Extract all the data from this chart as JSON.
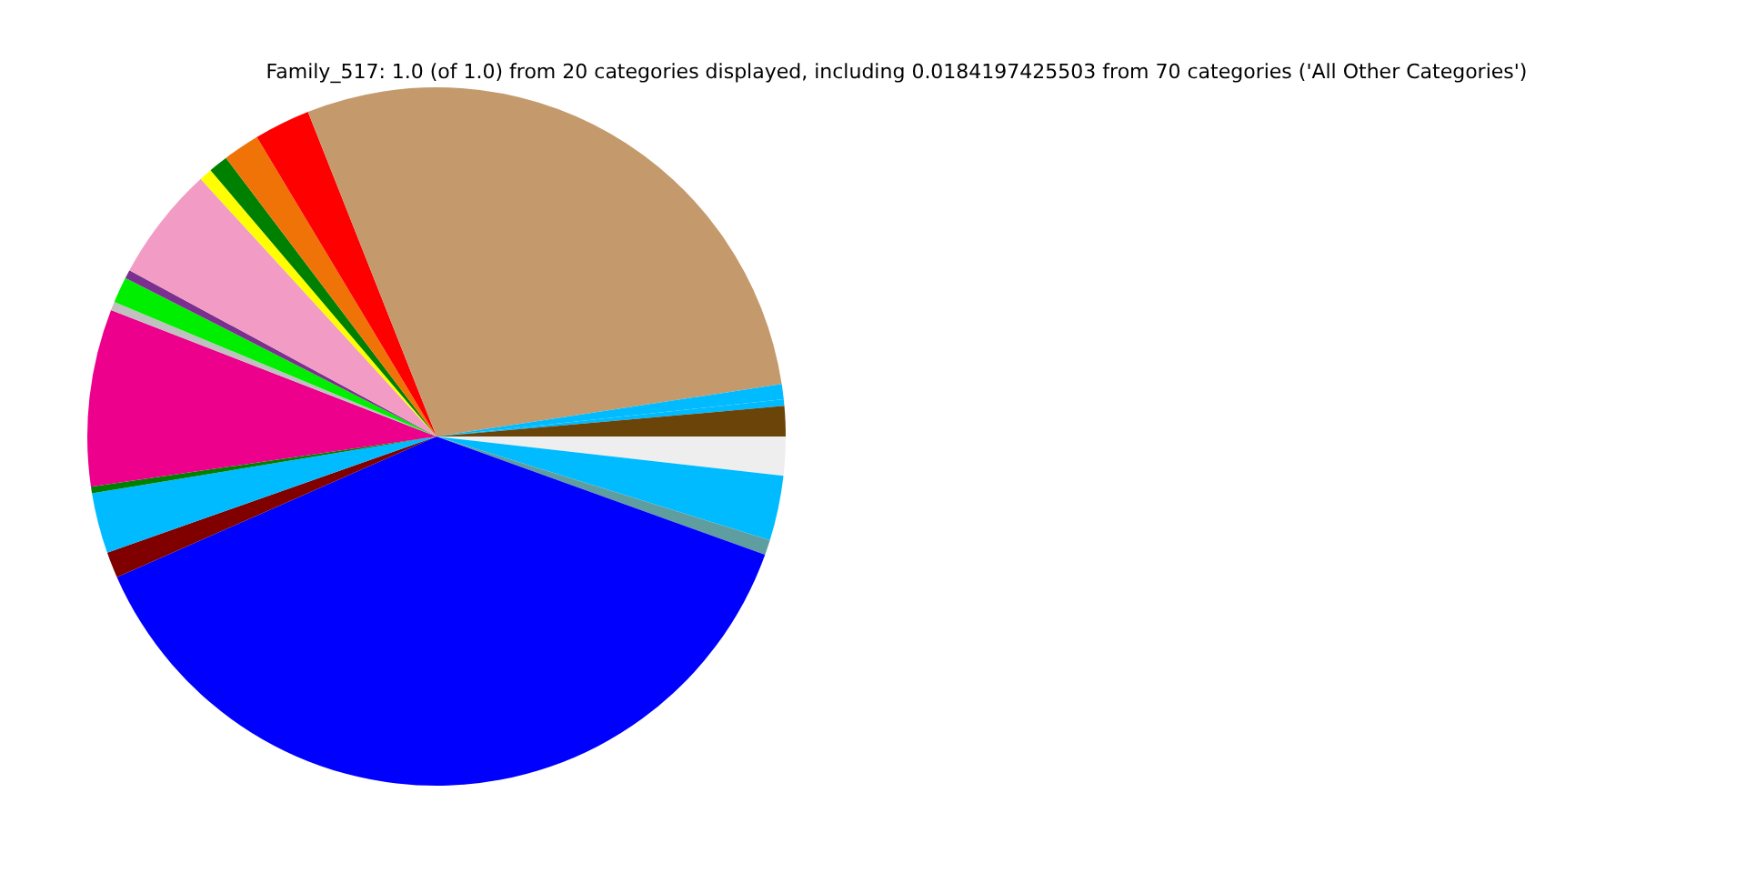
{
  "chart_data": {
    "type": "pie",
    "title": "Family_517: 1.0 (of 1.0) from 20 categories displayed, including 0.0184197425503 from 70 categories ('All Other Categories')",
    "categories": [
      null,
      null,
      null,
      null,
      null,
      null,
      null,
      null,
      null,
      null,
      null,
      null,
      null,
      null,
      null,
      null,
      null,
      null,
      null,
      null
    ],
    "values": [
      1.8,
      3.0,
      0.7,
      37.9,
      1.2,
      2.8,
      0.3,
      8.2,
      0.4,
      1.2,
      0.4,
      5.3,
      0.6,
      0.9,
      1.7,
      2.6,
      28.6,
      0.7,
      0.3,
      1.4
    ],
    "colors": [
      "#eeeeee",
      "#00bbff",
      "#5f9ea0",
      "#0000ff",
      "#800000",
      "#00bbff",
      "#008000",
      "#ec008c",
      "#c0c0c0",
      "#00ee00",
      "#7b2f8e",
      "#f29cc5",
      "#ffff00",
      "#008000",
      "#f07308",
      "#ff0000",
      "#c49a6c",
      "#00bbff",
      "#00bbff",
      "#6b4409"
    ],
    "legend": false
  }
}
